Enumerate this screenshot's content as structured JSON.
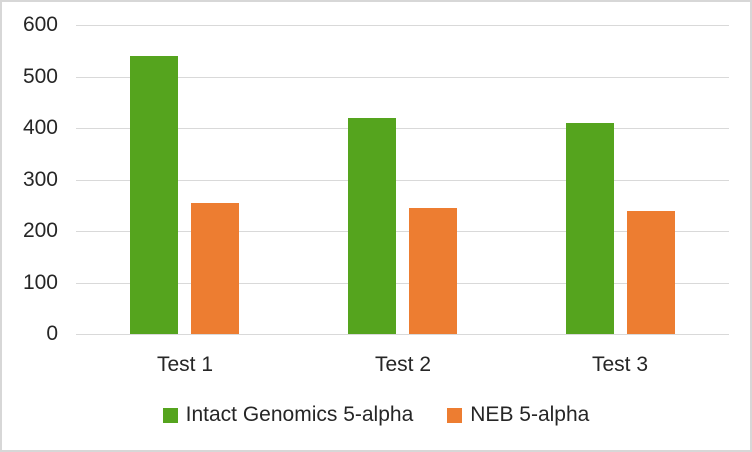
{
  "chart_data": {
    "type": "bar",
    "title": "",
    "xlabel": "",
    "ylabel": "",
    "categories": [
      "Test 1",
      "Test 2",
      "Test 3"
    ],
    "series": [
      {
        "name": "Intact Genomics 5-alpha",
        "color": "#55A41E",
        "values": [
          540,
          420,
          410
        ]
      },
      {
        "name": "NEB 5-alpha",
        "color": "#ED7D31",
        "values": [
          255,
          245,
          238
        ]
      }
    ],
    "ylim": [
      0,
      600
    ],
    "yticks": [
      0,
      100,
      200,
      300,
      400,
      500,
      600
    ],
    "grid": true,
    "legend_position": "bottom",
    "colors": {
      "gridline": "#D9D9D9",
      "axis_line": "#D9D9D9",
      "text": "#262626",
      "background": "#FFFFFF",
      "frame_border": "#D7D7D7"
    }
  }
}
